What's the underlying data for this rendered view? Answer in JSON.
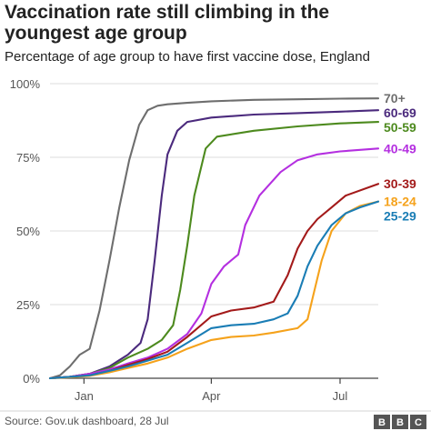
{
  "chart_data": {
    "type": "line",
    "title_line1": "Vaccination rate still climbing in the",
    "title_line2": "youngest age group",
    "subtitle": "Percentage of age group to have first vaccine dose, England",
    "y_ticks": [
      "0%",
      "25%",
      "50%",
      "75%",
      "100%"
    ],
    "ylim": [
      0,
      100
    ],
    "x_ticks": [
      "Jan",
      "Apr",
      "Jul"
    ],
    "xlim": [
      "2020-12-08",
      "2021-07-28"
    ],
    "grid": true,
    "series": [
      {
        "name": "70+",
        "color": "#6e6e6e",
        "x": [
          "2020-12-08",
          "2020-12-15",
          "2020-12-22",
          "2020-12-29",
          "2021-01-05",
          "2021-01-12",
          "2021-01-19",
          "2021-01-26",
          "2021-02-02",
          "2021-02-09",
          "2021-02-15",
          "2021-02-22",
          "2021-03-01",
          "2021-03-15",
          "2021-04-01",
          "2021-05-01",
          "2021-06-01",
          "2021-07-01",
          "2021-07-28"
        ],
        "y": [
          0,
          1,
          4,
          8,
          10,
          23,
          40,
          58,
          74,
          86,
          91,
          92.5,
          93,
          93.5,
          94,
          94.5,
          94.7,
          94.9,
          95
        ]
      },
      {
        "name": "60-69",
        "color": "#4b2a7d",
        "x": [
          "2020-12-08",
          "2020-12-22",
          "2021-01-05",
          "2021-01-19",
          "2021-02-01",
          "2021-02-10",
          "2021-02-15",
          "2021-02-20",
          "2021-02-25",
          "2021-03-01",
          "2021-03-08",
          "2021-03-15",
          "2021-04-01",
          "2021-05-01",
          "2021-06-01",
          "2021-07-01",
          "2021-07-28"
        ],
        "y": [
          0,
          0.5,
          1.5,
          4,
          8,
          12,
          20,
          40,
          62,
          76,
          84,
          87,
          88.5,
          89.5,
          90,
          90.5,
          91
        ]
      },
      {
        "name": "50-59",
        "color": "#4d8a1e",
        "x": [
          "2020-12-08",
          "2020-12-22",
          "2021-01-05",
          "2021-01-19",
          "2021-02-01",
          "2021-02-15",
          "2021-02-25",
          "2021-03-05",
          "2021-03-10",
          "2021-03-15",
          "2021-03-20",
          "2021-03-28",
          "2021-04-05",
          "2021-05-01",
          "2021-06-01",
          "2021-07-01",
          "2021-07-28"
        ],
        "y": [
          0,
          0.5,
          1.5,
          3.5,
          7,
          10,
          13,
          18,
          30,
          45,
          62,
          78,
          82,
          84,
          85.5,
          86.5,
          87
        ]
      },
      {
        "name": "40-49",
        "color": "#b42fe0",
        "x": [
          "2020-12-08",
          "2020-12-22",
          "2021-01-05",
          "2021-01-19",
          "2021-02-01",
          "2021-02-15",
          "2021-03-01",
          "2021-03-15",
          "2021-03-25",
          "2021-04-01",
          "2021-04-10",
          "2021-04-20",
          "2021-04-25",
          "2021-05-05",
          "2021-05-20",
          "2021-06-01",
          "2021-06-15",
          "2021-07-01",
          "2021-07-28"
        ],
        "y": [
          0,
          0.5,
          1.5,
          3,
          5,
          7,
          10,
          15,
          22,
          32,
          38,
          42,
          52,
          62,
          70,
          74,
          76,
          77,
          78
        ]
      },
      {
        "name": "30-39",
        "color": "#a31a1a",
        "x": [
          "2020-12-08",
          "2020-12-22",
          "2021-01-05",
          "2021-01-19",
          "2021-02-01",
          "2021-02-15",
          "2021-03-01",
          "2021-03-15",
          "2021-04-01",
          "2021-04-15",
          "2021-05-01",
          "2021-05-15",
          "2021-05-25",
          "2021-06-01",
          "2021-06-08",
          "2021-06-15",
          "2021-06-25",
          "2021-07-05",
          "2021-07-28"
        ],
        "y": [
          0,
          0.5,
          1,
          2.5,
          4.5,
          6.5,
          9,
          14,
          21,
          23,
          24,
          26,
          35,
          44,
          50,
          54,
          58,
          62,
          66
        ]
      },
      {
        "name": "18-24",
        "color": "#f5a21b",
        "x": [
          "2020-12-08",
          "2020-12-22",
          "2021-01-05",
          "2021-01-19",
          "2021-02-01",
          "2021-02-15",
          "2021-03-01",
          "2021-03-15",
          "2021-04-01",
          "2021-04-15",
          "2021-05-01",
          "2021-05-15",
          "2021-06-01",
          "2021-06-08",
          "2021-06-12",
          "2021-06-18",
          "2021-06-25",
          "2021-07-05",
          "2021-07-15",
          "2021-07-28"
        ],
        "y": [
          0,
          0.3,
          0.8,
          2,
          3.5,
          5,
          7,
          10,
          13,
          14,
          14.5,
          15.5,
          17,
          20,
          28,
          40,
          50,
          56,
          58.5,
          60
        ]
      },
      {
        "name": "25-29",
        "color": "#1a7db5",
        "x": [
          "2020-12-08",
          "2020-12-22",
          "2021-01-05",
          "2021-01-19",
          "2021-02-01",
          "2021-02-15",
          "2021-03-01",
          "2021-03-15",
          "2021-04-01",
          "2021-04-15",
          "2021-05-01",
          "2021-05-15",
          "2021-05-25",
          "2021-06-01",
          "2021-06-08",
          "2021-06-15",
          "2021-06-25",
          "2021-07-05",
          "2021-07-15",
          "2021-07-28"
        ],
        "y": [
          0,
          0.5,
          1,
          2.5,
          4,
          6,
          8,
          12,
          17,
          18,
          18.5,
          20,
          22,
          28,
          38,
          45,
          52,
          56,
          58,
          60
        ]
      }
    ],
    "source": "Source: Gov.uk dashboard, 28 Jul",
    "logo_letters": [
      "B",
      "B",
      "C"
    ]
  }
}
